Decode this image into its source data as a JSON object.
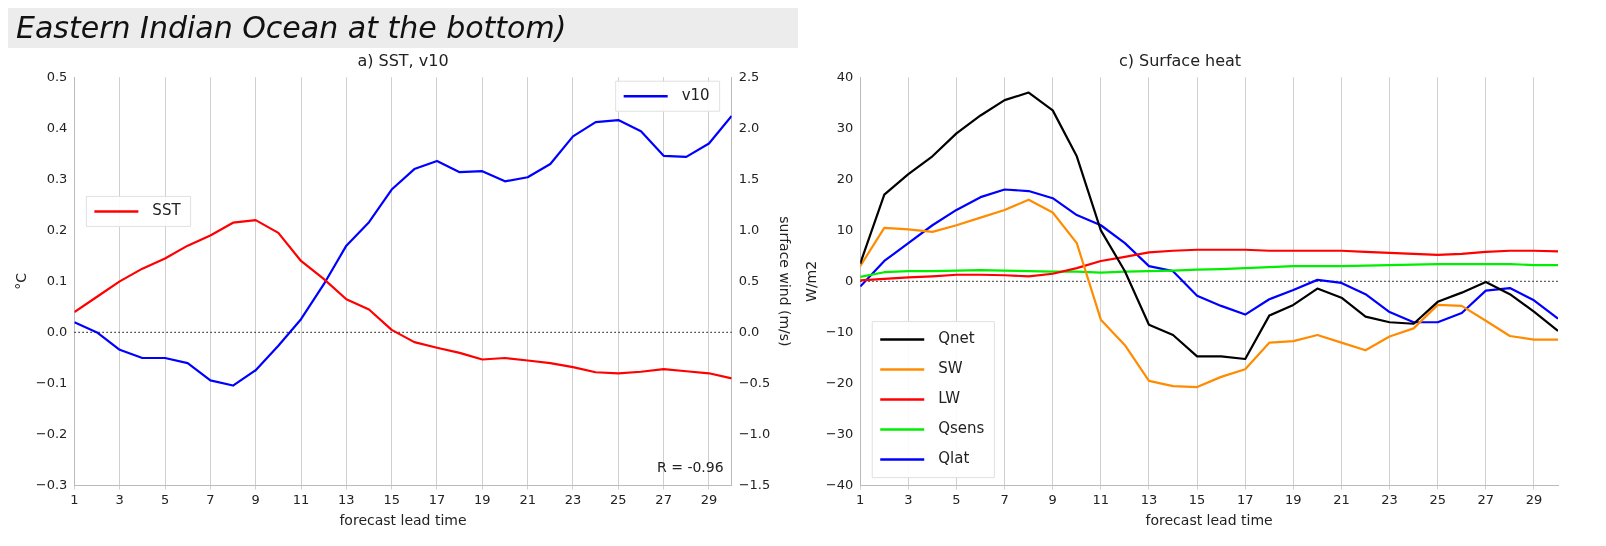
{
  "chart_data": [
    {
      "type": "line",
      "title": "a) SST, v10",
      "subtitle": "Eastern Indian Ocean at the bottom)",
      "xlabel": "forecast lead time",
      "ylabel": "°C",
      "y2label": "surface wind (m/s)",
      "annotations": [
        "R = -0.96"
      ],
      "x": [
        1,
        2,
        3,
        4,
        5,
        6,
        7,
        8,
        9,
        10,
        11,
        12,
        13,
        14,
        15,
        16,
        17,
        18,
        19,
        20,
        21,
        22,
        23,
        24,
        25,
        26,
        27,
        28,
        29,
        30
      ],
      "series": [
        {
          "name": "SST",
          "color": "#ff0000",
          "values": [
            0.04,
            0.07,
            0.1,
            0.125,
            0.145,
            0.17,
            0.19,
            0.215,
            0.22,
            0.195,
            0.14,
            0.105,
            0.065,
            0.045,
            0.005,
            -0.019,
            -0.03,
            -0.04,
            -0.053,
            -0.05,
            -0.055,
            -0.06,
            -0.068,
            -0.078,
            -0.08,
            -0.077,
            -0.072,
            -0.076,
            -0.08,
            -0.09
          ]
        },
        {
          "name": "v10",
          "color": "#0000ff",
          "axis": "y2",
          "values": [
            0.1,
            0.0,
            -0.17,
            -0.25,
            -0.25,
            -0.3,
            -0.47,
            -0.52,
            -0.37,
            -0.13,
            0.13,
            0.47,
            0.85,
            1.08,
            1.4,
            1.6,
            1.68,
            1.57,
            1.58,
            1.48,
            1.52,
            1.65,
            1.92,
            2.06,
            2.08,
            1.97,
            1.73,
            1.72,
            1.85,
            2.12
          ]
        }
      ],
      "xlim": [
        1,
        30
      ],
      "xticks": [
        1,
        3,
        5,
        7,
        9,
        11,
        13,
        15,
        17,
        19,
        21,
        23,
        25,
        27,
        29
      ],
      "ylim": [
        -0.3,
        0.5
      ],
      "yticks": [
        {
          "value": -0.3,
          "label": "−0.3"
        },
        {
          "value": -0.2,
          "label": "−0.2"
        },
        {
          "value": -0.1,
          "label": "−0.1"
        },
        {
          "value": 0,
          "label": "0.0"
        },
        0.1,
        0.2,
        0.3,
        0.4,
        0.5
      ],
      "y2lim": [
        -1.5,
        2.5
      ],
      "y2ticks": [
        {
          "value": -1.5,
          "label": "−1.5"
        },
        {
          "value": -1,
          "label": "−1.0"
        },
        {
          "value": -0.5,
          "label": "−0.5"
        },
        {
          "value": 0,
          "label": "0.0"
        },
        0.5,
        {
          "value": 1,
          "label": "1.0"
        },
        1.5,
        {
          "value": 2,
          "label": "2.0"
        },
        2.5
      ],
      "ref_lines": [
        {
          "axis": "y",
          "value": 0,
          "color": "#333333",
          "line_style": "dotted"
        }
      ],
      "grid": "x",
      "legend": "top right",
      "line_style": "solid"
    },
    {
      "type": "line",
      "title": "c) Surface heat",
      "xlabel": "forecast lead time",
      "ylabel": "W/m2",
      "x": [
        1,
        2,
        3,
        4,
        5,
        6,
        7,
        8,
        9,
        10,
        11,
        12,
        13,
        14,
        15,
        16,
        17,
        18,
        19,
        20,
        21,
        22,
        23,
        24,
        25,
        26,
        27,
        28,
        29,
        30
      ],
      "series": [
        {
          "name": "Qnet",
          "color": "#000000",
          "values": [
            3.5,
            17,
            21,
            24.5,
            29,
            32.5,
            35.5,
            37,
            33.5,
            24.5,
            10,
            2,
            -8.5,
            -10.5,
            -14.7,
            -14.7,
            -15.2,
            -6.7,
            -4.6,
            -1.4,
            -3.2,
            -6.9,
            -8,
            -8.3,
            -4,
            -2.2,
            -0.1,
            -2.5,
            -5.9,
            -9.7
          ]
        },
        {
          "name": "SW",
          "color": "#ff8c00",
          "values": [
            3,
            10.5,
            10.2,
            9.7,
            11,
            12.5,
            14,
            16,
            13.5,
            7.5,
            -7.5,
            -12.5,
            -19.5,
            -20.5,
            -20.7,
            -18.7,
            -17.2,
            -12,
            -11.7,
            -10.5,
            -12,
            -13.5,
            -10.8,
            -9.2,
            -4.6,
            -4.8,
            -7.7,
            -10.7,
            -11.4,
            -11.4
          ]
        },
        {
          "name": "LW",
          "color": "#ff0000",
          "values": [
            0.2,
            0.5,
            0.8,
            1,
            1.3,
            1.3,
            1.2,
            1,
            1.5,
            2.6,
            4,
            4.8,
            5.7,
            6,
            6.2,
            6.2,
            6.2,
            6,
            6,
            6,
            6,
            5.8,
            5.6,
            5.4,
            5.2,
            5.4,
            5.8,
            6,
            6,
            5.9
          ]
        },
        {
          "name": "Qsens",
          "color": "#00ee00",
          "values": [
            0.9,
            1.8,
            2,
            2,
            2.1,
            2.2,
            2.1,
            2,
            1.9,
            1.9,
            1.7,
            1.9,
            2,
            2.1,
            2.3,
            2.4,
            2.6,
            2.8,
            3,
            3,
            3,
            3.1,
            3.2,
            3.3,
            3.4,
            3.4,
            3.4,
            3.4,
            3.2,
            3.2
          ]
        },
        {
          "name": "Qlat",
          "color": "#0000ff",
          "values": [
            -1,
            4,
            7.5,
            11,
            14,
            16.5,
            18,
            17.7,
            16.3,
            13,
            11,
            7.5,
            3,
            2,
            -2.8,
            -4.8,
            -6.5,
            -3.5,
            -1.7,
            0.3,
            -0.3,
            -2.5,
            -6,
            -8,
            -8,
            -6.2,
            -1.8,
            -1.3,
            -3.7,
            -7.3
          ]
        }
      ],
      "xlim": [
        1,
        30
      ],
      "xticks": [
        1,
        3,
        5,
        7,
        9,
        11,
        13,
        15,
        17,
        19,
        21,
        23,
        25,
        27,
        29
      ],
      "ylim": [
        -40,
        40
      ],
      "yticks": [
        {
          "value": -40,
          "label": "−40"
        },
        {
          "value": -30,
          "label": "−30"
        },
        {
          "value": -20,
          "label": "−20"
        },
        {
          "value": -10,
          "label": "−10"
        },
        0,
        10,
        20,
        30,
        40
      ],
      "ref_lines": [
        {
          "axis": "y",
          "value": 0,
          "color": "#333333",
          "line_style": "dotted"
        }
      ],
      "grid": "x",
      "legend": "bottom left",
      "line_style": "solid"
    }
  ]
}
